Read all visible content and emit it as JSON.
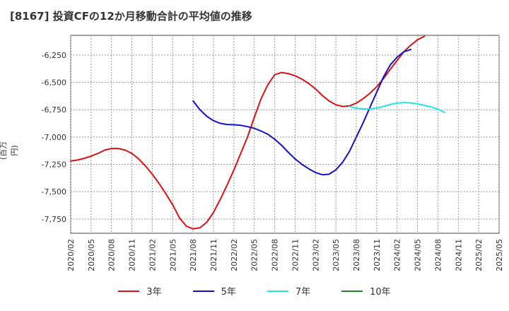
{
  "title": "[8167]  投資CFの12か月移動合計の平均値の推移",
  "chart_data": {
    "type": "line",
    "ylabel": "(百万円)",
    "xlabel": "",
    "ylim": [
      -7880,
      -6070
    ],
    "y_ticks": [
      -6250,
      -6500,
      -6750,
      -7000,
      -7250,
      -7500,
      -7750
    ],
    "y_tick_labels": [
      "-6,250",
      "-6,500",
      "-6,750",
      "-7,000",
      "-7,250",
      "-7,500",
      "-7,750"
    ],
    "x_ticks": [
      "2020/02",
      "2020/05",
      "2020/08",
      "2020/11",
      "2021/02",
      "2021/05",
      "2021/08",
      "2021/11",
      "2022/02",
      "2022/05",
      "2022/08",
      "2022/11",
      "2023/02",
      "2023/05",
      "2023/08",
      "2023/11",
      "2024/02",
      "2024/05",
      "2024/08",
      "2024/11",
      "2025/02",
      "2025/05"
    ],
    "grid": true,
    "legend_position": "bottom",
    "series": [
      {
        "name": "3年",
        "color": "#dd1111",
        "start": "2020/02",
        "values": [
          -7220,
          -7210,
          -7195,
          -7175,
          -7150,
          -7120,
          -7105,
          -7105,
          -7120,
          -7150,
          -7200,
          -7265,
          -7340,
          -7425,
          -7520,
          -7620,
          -7740,
          -7815,
          -7840,
          -7830,
          -7780,
          -7690,
          -7570,
          -7440,
          -7300,
          -7150,
          -7000,
          -6820,
          -6650,
          -6520,
          -6430,
          -6410,
          -6420,
          -6440,
          -6470,
          -6510,
          -6560,
          -6620,
          -6670,
          -6705,
          -6720,
          -6715,
          -6690,
          -6650,
          -6600,
          -6540,
          -6465,
          -6380,
          -6300,
          -6220,
          -6160,
          -6110,
          -6080
        ]
      },
      {
        "name": "5年",
        "color": "#1111cc",
        "start": "2021/08",
        "values": [
          -6670,
          -6750,
          -6810,
          -6850,
          -6875,
          -6885,
          -6888,
          -6893,
          -6905,
          -6920,
          -6945,
          -6975,
          -7020,
          -7075,
          -7140,
          -7200,
          -7250,
          -7290,
          -7325,
          -7345,
          -7340,
          -7300,
          -7230,
          -7130,
          -7000,
          -6870,
          -6730,
          -6590,
          -6450,
          -6340,
          -6270,
          -6220,
          -6200
        ]
      },
      {
        "name": "7年",
        "color": "#22e5e5",
        "start": "2023/07",
        "values": [
          -6720,
          -6735,
          -6743,
          -6743,
          -6735,
          -6720,
          -6702,
          -6690,
          -6685,
          -6688,
          -6697,
          -6710,
          -6725,
          -6745,
          -6775
        ]
      },
      {
        "name": "10年",
        "color": "#228822",
        "start": "2025/02",
        "values": []
      }
    ]
  }
}
